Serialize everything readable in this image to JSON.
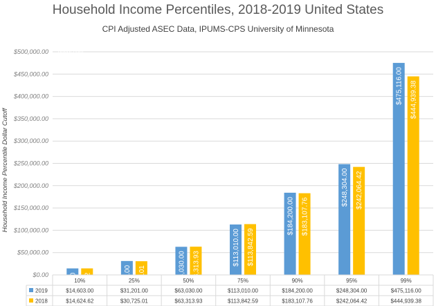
{
  "chart_data": {
    "type": "bar",
    "title": "Household Income Percentiles, 2018-2019 United States",
    "subtitle": "CPI Adjusted ASEC Data, IPUMS-CPS University of Minnesota",
    "ylabel": "Household Income Percentile Dollar Cutoff",
    "xlabel": "",
    "watermark": "dqydj.com",
    "ylim": [
      0,
      500000
    ],
    "yticks": [
      "$0.00",
      "$50,000.00",
      "$100,000.00",
      "$150,000.00",
      "$200,000.00",
      "$250,000.00",
      "$300,000.00",
      "$350,000.00",
      "$400,000.00",
      "$450,000.00",
      "$500,000.00"
    ],
    "categories": [
      "10%",
      "25%",
      "50%",
      "75%",
      "90%",
      "95%",
      "99%"
    ],
    "grid": true,
    "legend": "data-table",
    "series": [
      {
        "name": "2019",
        "color": "#5b9bd5",
        "values": [
          14603,
          31201,
          63030,
          113010,
          184200,
          248304,
          475116
        ],
        "labels": [
          "$14,603.00",
          "$31,201.00",
          "$63,030.00",
          "$113,010.00",
          "$184,200.00",
          "$248,304.00",
          "$475,116.00"
        ]
      },
      {
        "name": "2018",
        "color": "#ffc000",
        "values": [
          14624.62,
          30725.01,
          63313.93,
          113842.59,
          183107.76,
          242064.42,
          444939.38
        ],
        "labels": [
          "$14,624.62",
          "$30,725.01",
          "$63,313.93",
          "$113,842.59",
          "$183,107.76",
          "$242,064.42",
          "$444,939.38"
        ]
      }
    ]
  }
}
